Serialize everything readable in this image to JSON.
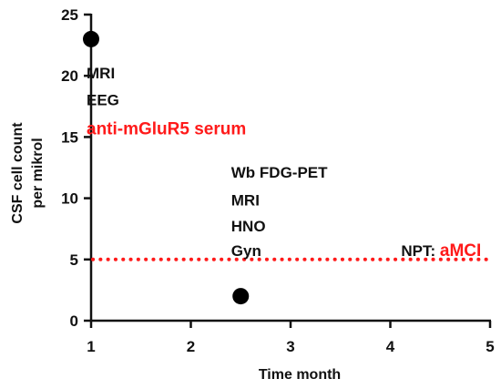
{
  "chart_data": {
    "type": "scatter",
    "xlabel": "Time month",
    "ylabel_lines": [
      "CSF cell count",
      "per mikrol"
    ],
    "xlim": [
      1,
      5
    ],
    "ylim": [
      0,
      25
    ],
    "xticks": [
      "1",
      "2",
      "3",
      "4",
      "5"
    ],
    "yticks": [
      "0",
      "5",
      "10",
      "15",
      "20",
      "25"
    ],
    "grid": false,
    "points": [
      {
        "x": 1,
        "y": 23
      },
      {
        "x": 2.5,
        "y": 2
      }
    ],
    "reference_line": {
      "y": 5,
      "style": "dotted",
      "color": "#ff1a1a"
    },
    "colors": {
      "point": "#000000",
      "highlight": "#ff1a1a",
      "axis": "#111111"
    },
    "annotations": [
      {
        "id": "a1",
        "text": "MRI",
        "x": 1,
        "y": 19.8,
        "color": "#111111",
        "emphasis": false
      },
      {
        "id": "a2",
        "text": "EEG",
        "x": 1,
        "y": 17.6,
        "color": "#111111",
        "emphasis": false
      },
      {
        "id": "a3",
        "text": "anti-mGluR5 serum",
        "x": 1,
        "y": 15.2,
        "color": "#ff1a1a",
        "emphasis": true
      },
      {
        "id": "b1",
        "text": "Wb FDG-PET",
        "x": 2.45,
        "y": 11.7,
        "color": "#111111",
        "emphasis": false
      },
      {
        "id": "b2",
        "text": "MRI",
        "x": 2.45,
        "y": 9.4,
        "color": "#111111",
        "emphasis": false
      },
      {
        "id": "b3",
        "text": "HNO",
        "x": 2.45,
        "y": 7.3,
        "color": "#111111",
        "emphasis": false
      },
      {
        "id": "b4",
        "text": "Gyn",
        "x": 2.45,
        "y": 5.3,
        "color": "#111111",
        "emphasis": false
      }
    ],
    "npt_label": {
      "prefix": "NPT: ",
      "value": "aMCI",
      "x": 4.2,
      "y": 5.3
    }
  }
}
